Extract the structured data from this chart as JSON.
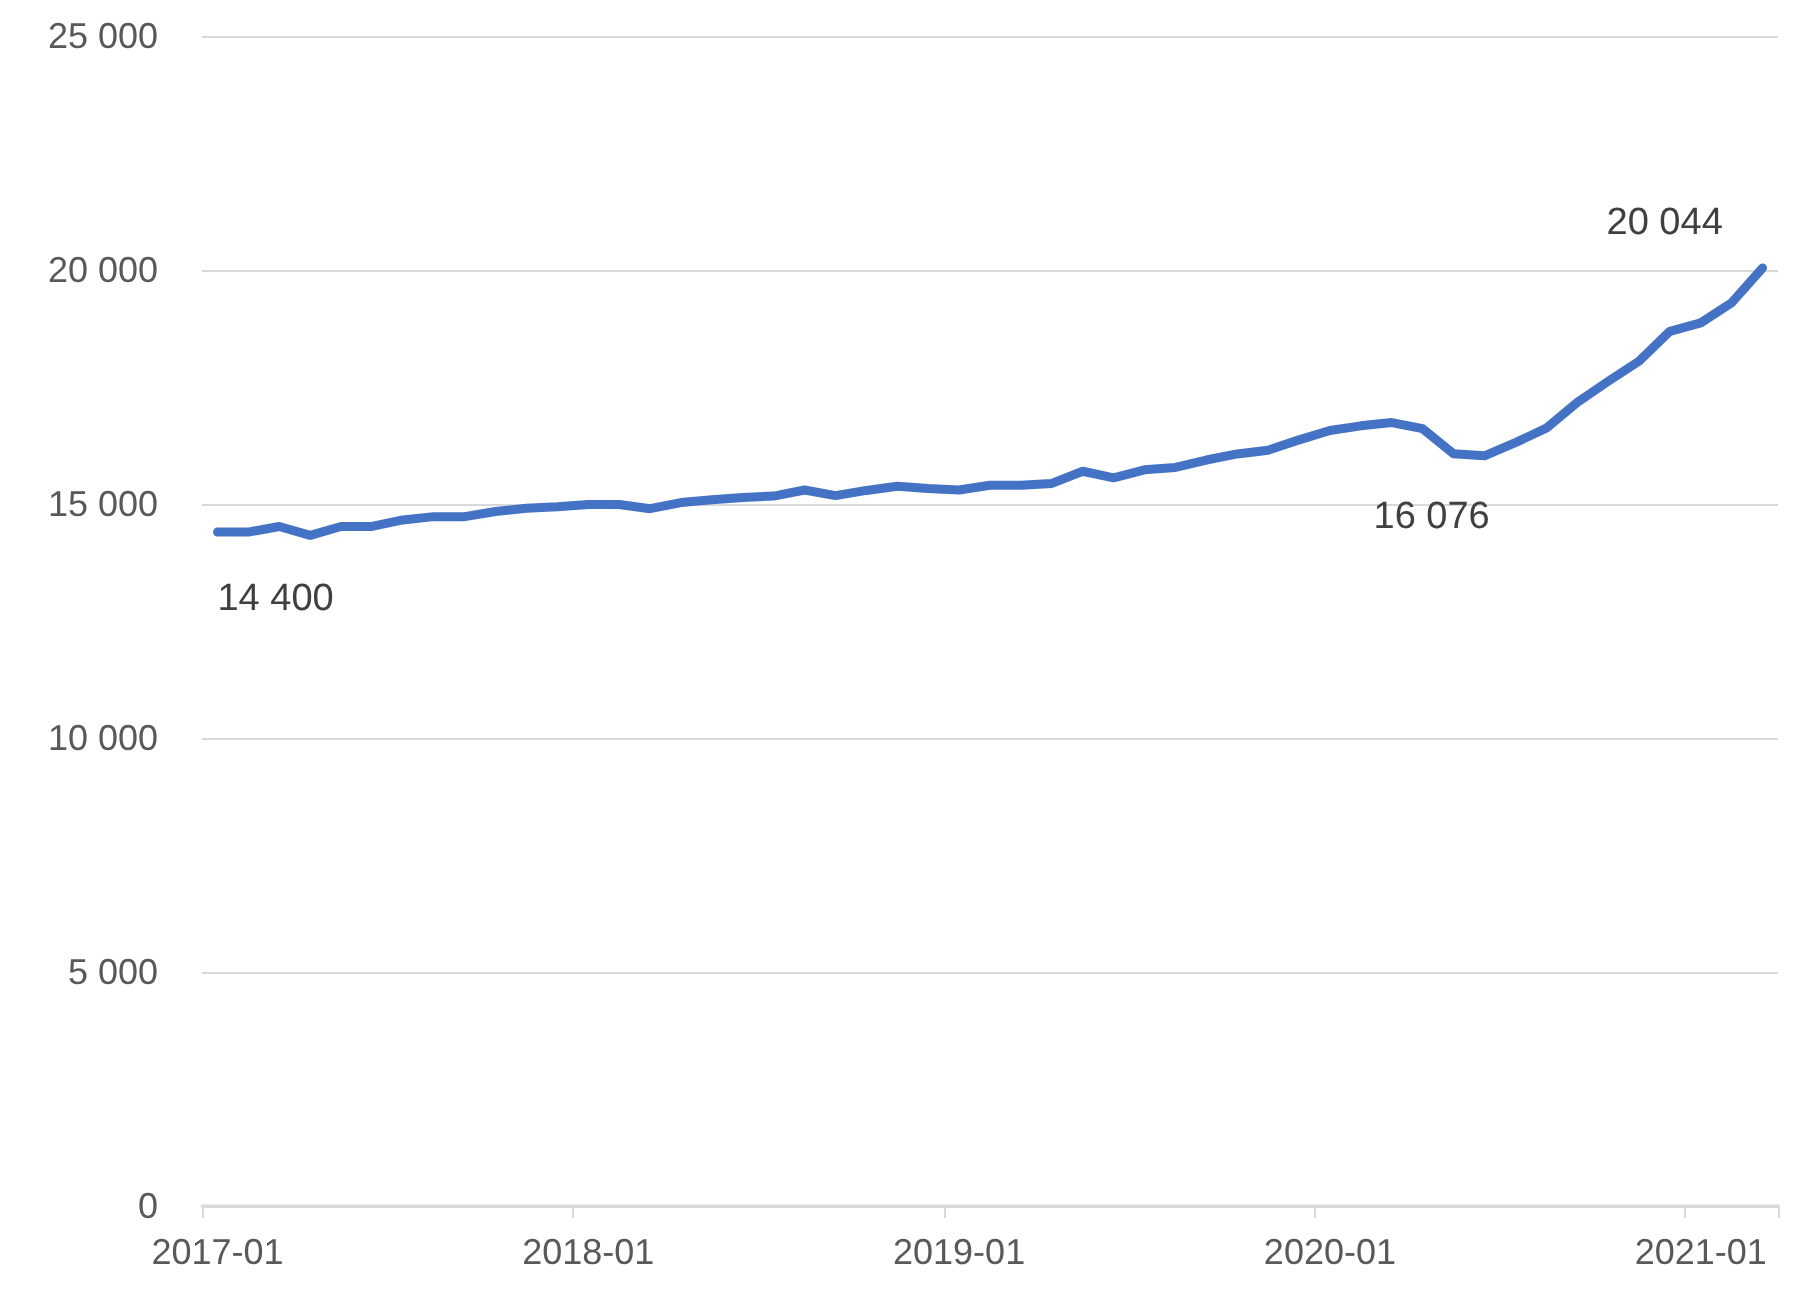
{
  "chart_data": {
    "type": "line",
    "categories": [
      "2017-01",
      null,
      null,
      null,
      null,
      null,
      null,
      null,
      null,
      null,
      null,
      null,
      "2018-01",
      null,
      null,
      null,
      null,
      null,
      null,
      null,
      null,
      null,
      null,
      null,
      "2019-01",
      null,
      null,
      null,
      null,
      null,
      null,
      null,
      null,
      null,
      null,
      null,
      "2020-01",
      null,
      null,
      null,
      null,
      null,
      null,
      null,
      null,
      null,
      null,
      null,
      "2021-01",
      null,
      null
    ],
    "series": [
      {
        "color": "#4472c4",
        "values": [
          14400,
          14400,
          14520,
          14330,
          14520,
          14520,
          14660,
          14730,
          14730,
          14840,
          14910,
          14940,
          14990,
          14990,
          14900,
          15030,
          15090,
          15140,
          15170,
          15300,
          15180,
          15290,
          15380,
          15330,
          15300,
          15400,
          15400,
          15440,
          15700,
          15560,
          15730,
          15780,
          15940,
          16070,
          16150,
          16370,
          16570,
          16670,
          16740,
          16610,
          16076,
          16030,
          16310,
          16620,
          17170,
          17620,
          18050,
          18690,
          18870,
          19300,
          20044
        ],
        "value_labels": [
          "14 400",
          null,
          null,
          null,
          null,
          null,
          null,
          null,
          null,
          null,
          null,
          null,
          null,
          null,
          null,
          null,
          null,
          null,
          null,
          null,
          null,
          null,
          null,
          null,
          null,
          null,
          null,
          null,
          null,
          null,
          null,
          null,
          null,
          null,
          null,
          null,
          null,
          null,
          null,
          null,
          "16 076",
          null,
          null,
          null,
          null,
          null,
          null,
          null,
          null,
          null,
          "20 044"
        ]
      }
    ],
    "ylim": [
      0,
      25000
    ],
    "yticks": [
      {
        "value": 0,
        "label": "0"
      },
      {
        "value": 5000,
        "label": "5 000"
      },
      {
        "value": 10000,
        "label": "10 000"
      },
      {
        "value": 15000,
        "label": "15 000"
      },
      {
        "value": 20000,
        "label": "20 000"
      },
      {
        "value": 25000,
        "label": "25 000"
      }
    ],
    "grid": "y",
    "marker": "none",
    "line_style": "solid"
  }
}
